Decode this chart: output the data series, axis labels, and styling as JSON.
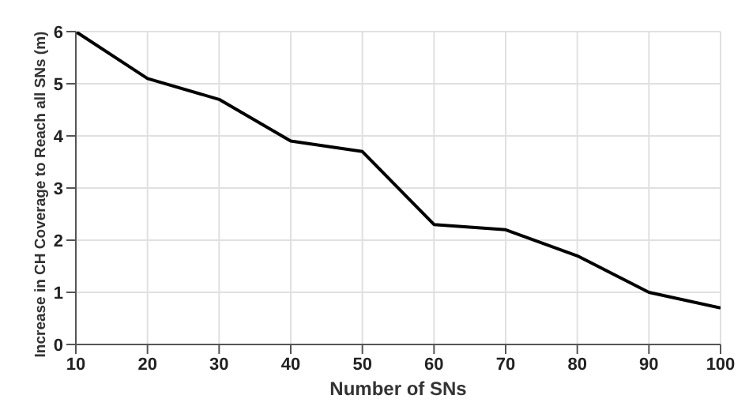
{
  "chart_data": {
    "type": "line",
    "xlabel": "Number of SNs",
    "ylabel": "Increase in CH Coverage to Reach all SNs (m)",
    "x": [
      10,
      20,
      30,
      40,
      50,
      60,
      70,
      80,
      90,
      100
    ],
    "series": [
      {
        "color": "#000000",
        "values": [
          6,
          5.1,
          4.7,
          3.9,
          3.7,
          2.3,
          2.2,
          1.7,
          1.0,
          0.7
        ]
      }
    ],
    "xlim": [
      10,
      100
    ],
    "xticks": [
      10,
      20,
      30,
      40,
      50,
      60,
      70,
      80,
      90,
      100
    ],
    "ylim": [
      0,
      6
    ],
    "yticks": [
      0,
      1,
      2,
      3,
      4,
      5,
      6
    ],
    "grid": true,
    "marker": "none",
    "line_style": "solid"
  }
}
